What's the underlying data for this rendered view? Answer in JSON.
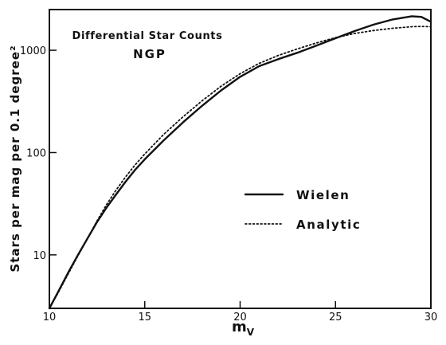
{
  "chart_data": {
    "type": "line",
    "title": "Differential Star Counts",
    "subtitle": "NGP",
    "xlabel": "m",
    "xlabel_sub": "V",
    "ylabel": "Stars per mag per 0.1 degree²",
    "xlim": [
      10,
      30
    ],
    "ylim": [
      3,
      2500
    ],
    "yscale": "log",
    "grid": false,
    "legend_placement": "right",
    "x_ticks": [
      {
        "value": 10,
        "label": "10"
      },
      {
        "value": 15,
        "label": "15"
      },
      {
        "value": 20,
        "label": "20"
      },
      {
        "value": 25,
        "label": "25"
      },
      {
        "value": 30,
        "label": "30"
      }
    ],
    "y_ticks": [
      {
        "value": 10,
        "label": "10"
      },
      {
        "value": 100,
        "label": "100"
      },
      {
        "value": 1000,
        "label": "1000"
      }
    ],
    "series": [
      {
        "name": "Wielen",
        "style": "solid",
        "points": [
          [
            10,
            3
          ],
          [
            10.5,
            4.5
          ],
          [
            11,
            6.8
          ],
          [
            11.5,
            10
          ],
          [
            12,
            14.5
          ],
          [
            12.5,
            21
          ],
          [
            13,
            29
          ],
          [
            13.5,
            39
          ],
          [
            14,
            52
          ],
          [
            14.5,
            68
          ],
          [
            15,
            86
          ],
          [
            16,
            132
          ],
          [
            17,
            197
          ],
          [
            18,
            286
          ],
          [
            19,
            405
          ],
          [
            20,
            550
          ],
          [
            21,
            700
          ],
          [
            22,
            820
          ],
          [
            23,
            945
          ],
          [
            24,
            1110
          ],
          [
            25,
            1310
          ],
          [
            26,
            1540
          ],
          [
            27,
            1780
          ],
          [
            28,
            2000
          ],
          [
            29,
            2150
          ],
          [
            29.5,
            2120
          ],
          [
            30,
            1900
          ]
        ]
      },
      {
        "name": "Analytic",
        "style": "dotted",
        "points": [
          [
            10,
            3
          ],
          [
            10.5,
            4.4
          ],
          [
            11,
            6.6
          ],
          [
            11.5,
            9.8
          ],
          [
            12,
            14.5
          ],
          [
            12.5,
            21.5
          ],
          [
            13,
            31
          ],
          [
            13.5,
            43
          ],
          [
            14,
            58
          ],
          [
            14.5,
            76
          ],
          [
            15,
            97
          ],
          [
            16,
            151
          ],
          [
            17,
            223
          ],
          [
            18,
            320
          ],
          [
            19,
            445
          ],
          [
            20,
            590
          ],
          [
            21,
            745
          ],
          [
            22,
            890
          ],
          [
            23,
            1030
          ],
          [
            24,
            1180
          ],
          [
            25,
            1330
          ],
          [
            26,
            1460
          ],
          [
            27,
            1560
          ],
          [
            28,
            1640
          ],
          [
            29,
            1700
          ],
          [
            29.5,
            1710
          ],
          [
            30,
            1700
          ]
        ]
      }
    ]
  }
}
